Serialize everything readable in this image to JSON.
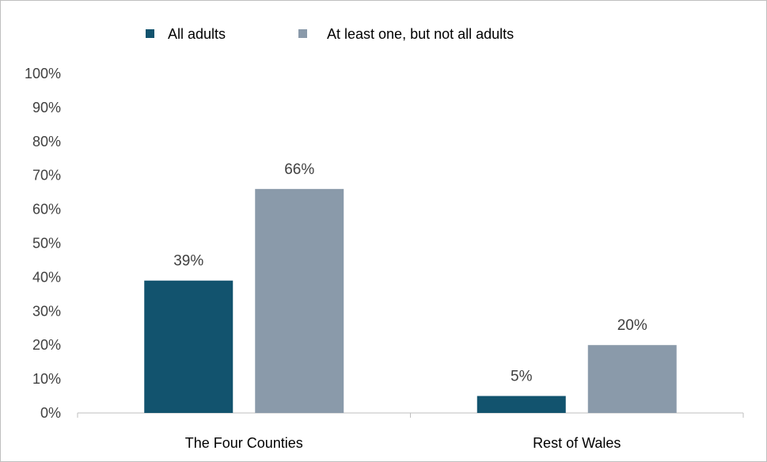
{
  "chart_data": {
    "type": "bar",
    "categories": [
      "The Four Counties",
      "Rest of Wales"
    ],
    "series": [
      {
        "name": "All adults",
        "values": [
          39,
          5
        ],
        "color": "#12536e"
      },
      {
        "name": "At least one, but not all adults",
        "values": [
          66,
          20
        ],
        "color": "#8a9aaa"
      }
    ],
    "data_labels": [
      [
        "39%",
        "5%"
      ],
      [
        "66%",
        "20%"
      ]
    ],
    "y_ticks": [
      "0%",
      "10%",
      "20%",
      "30%",
      "40%",
      "50%",
      "60%",
      "70%",
      "80%",
      "90%",
      "100%"
    ],
    "ylim": [
      0,
      100
    ],
    "grid": false,
    "legend_position": "top-center",
    "title": "",
    "xlabel": "",
    "ylabel": ""
  }
}
